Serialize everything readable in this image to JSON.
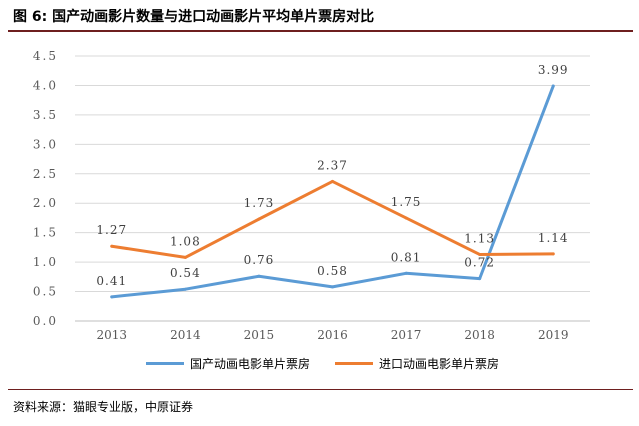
{
  "header": {
    "figure_label": "图 6:",
    "title": "国产动画影片数量与进口动画影片平均单片票房对比"
  },
  "footer": {
    "source": "资料来源：猫眼专业版，中原证券"
  },
  "colors": {
    "series_1": "#5b9bd5",
    "series_2": "#ed7d31",
    "rule": "#6e1f1f",
    "grid": "#d9d9d9"
  },
  "chart_data": {
    "type": "line",
    "title": "国产动画影片数量与进口动画影片平均单片票房对比",
    "categories": [
      "2013",
      "2014",
      "2015",
      "2016",
      "2017",
      "2018",
      "2019"
    ],
    "ylim": [
      0,
      4.5
    ],
    "yticks": [
      "0.0",
      "0.5",
      "1.0",
      "1.5",
      "2.0",
      "2.5",
      "3.0",
      "3.5",
      "4.0",
      "4.5"
    ],
    "grid": "horizontal",
    "legend_position": "bottom",
    "series": [
      {
        "name": "国产动画电影单片票房",
        "values": [
          0.41,
          0.54,
          0.76,
          0.58,
          0.81,
          0.72,
          3.99
        ],
        "labels": [
          "0.41",
          "0.54",
          "0.76",
          "0.58",
          "0.81",
          "0.72",
          "3.99"
        ]
      },
      {
        "name": "进口动画电影单片票房",
        "values": [
          1.27,
          1.08,
          1.73,
          2.37,
          1.75,
          1.13,
          1.14
        ],
        "labels": [
          "1.27",
          "1.08",
          "1.73",
          "2.37",
          "1.75",
          "1.13",
          "1.14"
        ]
      }
    ]
  }
}
